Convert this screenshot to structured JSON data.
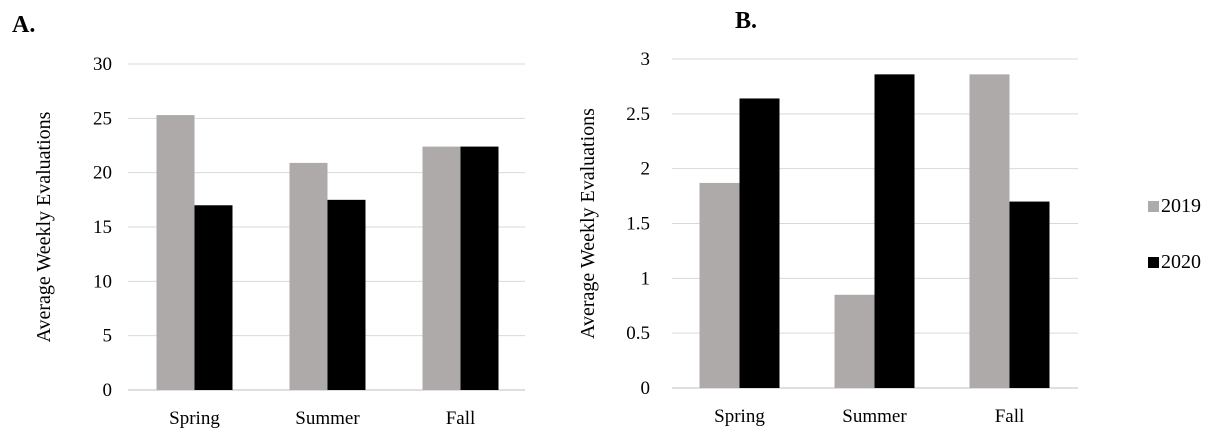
{
  "chart_data": [
    {
      "type": "bar",
      "panel_label": "A.",
      "ylabel": "Average Weekly Evaluations",
      "categories": [
        "Spring",
        "Summer",
        "Fall"
      ],
      "yticks": [
        "0",
        "5",
        "10",
        "15",
        "20",
        "25",
        "30"
      ],
      "ylim": [
        0,
        30
      ],
      "grid": true,
      "series": [
        {
          "name": "2019",
          "color": "#aeaaaa",
          "values": [
            25.3,
            20.9,
            22.4
          ]
        },
        {
          "name": "2020",
          "color": "#000000",
          "values": [
            17.0,
            17.5,
            22.4
          ]
        }
      ]
    },
    {
      "type": "bar",
      "panel_label": "B.",
      "ylabel": "Average Weekly Evaluations",
      "categories": [
        "Spring",
        "Summer",
        "Fall"
      ],
      "yticks": [
        "0",
        "0.5",
        "1",
        "1.5",
        "2",
        "2.5",
        "3"
      ],
      "ylim": [
        0,
        3
      ],
      "grid": true,
      "series": [
        {
          "name": "2019",
          "color": "#aeaaaa",
          "values": [
            1.87,
            0.85,
            2.86
          ]
        },
        {
          "name": "2020",
          "color": "#000000",
          "values": [
            2.64,
            2.86,
            1.7
          ]
        }
      ]
    }
  ],
  "legend": {
    "placement": "right",
    "items": [
      {
        "label": "2019",
        "color": "#aeaaaa"
      },
      {
        "label": "2020",
        "color": "#000000"
      }
    ]
  }
}
